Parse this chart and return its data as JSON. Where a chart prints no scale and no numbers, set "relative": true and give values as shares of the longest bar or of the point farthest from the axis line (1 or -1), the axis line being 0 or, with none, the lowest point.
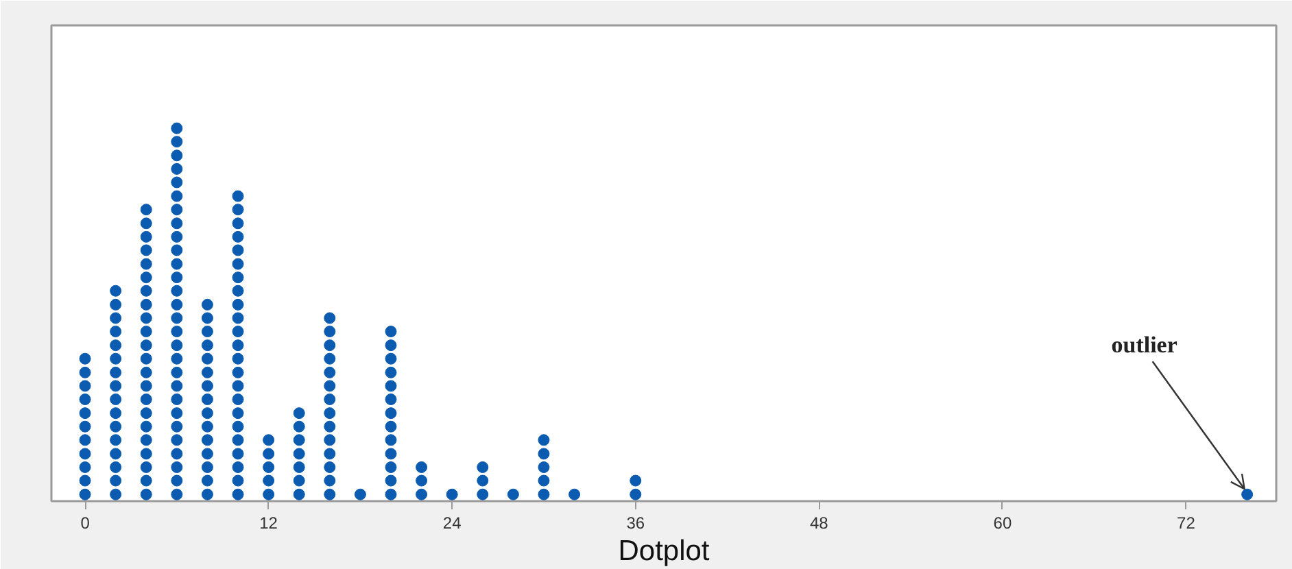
{
  "chart_data": {
    "type": "scatter",
    "relative": true,
    "marker": "circle",
    "color": "#0b5cb0",
    "xlabel": "Dotplot",
    "xlim": [
      -2.2,
      77.9
    ],
    "xticks": [
      0,
      12,
      24,
      36,
      48,
      60,
      72
    ],
    "x": [
      0,
      0,
      0,
      0,
      0,
      0,
      0,
      0,
      0,
      0,
      0,
      2,
      2,
      2,
      2,
      2,
      2,
      2,
      2,
      2,
      2,
      2,
      2,
      2,
      2,
      2,
      2,
      4,
      4,
      4,
      4,
      4,
      4,
      4,
      4,
      4,
      4,
      4,
      4,
      4,
      4,
      4,
      4,
      4,
      4,
      4,
      4,
      4,
      4,
      6,
      6,
      6,
      6,
      6,
      6,
      6,
      6,
      6,
      6,
      6,
      6,
      6,
      6,
      6,
      6,
      6,
      6,
      6,
      6,
      6,
      6,
      6,
      6,
      6,
      6,
      6,
      6,
      8,
      8,
      8,
      8,
      8,
      8,
      8,
      8,
      8,
      8,
      8,
      8,
      8,
      8,
      8,
      10,
      10,
      10,
      10,
      10,
      10,
      10,
      10,
      10,
      10,
      10,
      10,
      10,
      10,
      10,
      10,
      10,
      10,
      10,
      10,
      10,
      10,
      10,
      12,
      12,
      12,
      12,
      12,
      14,
      14,
      14,
      14,
      14,
      14,
      14,
      16,
      16,
      16,
      16,
      16,
      16,
      16,
      16,
      16,
      16,
      16,
      16,
      16,
      16,
      18,
      20,
      20,
      20,
      20,
      20,
      20,
      20,
      20,
      20,
      20,
      20,
      20,
      20,
      22,
      22,
      22,
      24,
      26,
      26,
      26,
      28,
      30,
      30,
      30,
      30,
      30,
      32,
      36,
      36,
      76
    ],
    "values": [
      0.018,
      0.055,
      0.091,
      0.127,
      0.164,
      0.2,
      0.236,
      0.273,
      0.309,
      0.345,
      0.382,
      0.018,
      0.055,
      0.091,
      0.127,
      0.164,
      0.2,
      0.236,
      0.273,
      0.309,
      0.345,
      0.382,
      0.418,
      0.455,
      0.491,
      0.527,
      0.564,
      0.018,
      0.055,
      0.091,
      0.127,
      0.164,
      0.2,
      0.236,
      0.273,
      0.309,
      0.345,
      0.382,
      0.418,
      0.455,
      0.491,
      0.527,
      0.564,
      0.6,
      0.636,
      0.673,
      0.709,
      0.745,
      0.782,
      0.018,
      0.055,
      0.091,
      0.127,
      0.164,
      0.2,
      0.236,
      0.273,
      0.309,
      0.345,
      0.382,
      0.418,
      0.455,
      0.491,
      0.527,
      0.564,
      0.6,
      0.636,
      0.673,
      0.709,
      0.745,
      0.782,
      0.818,
      0.855,
      0.891,
      0.927,
      0.964,
      1,
      0.018,
      0.055,
      0.091,
      0.127,
      0.164,
      0.2,
      0.236,
      0.273,
      0.309,
      0.345,
      0.382,
      0.418,
      0.455,
      0.491,
      0.527,
      0.018,
      0.055,
      0.091,
      0.127,
      0.164,
      0.2,
      0.236,
      0.273,
      0.309,
      0.345,
      0.382,
      0.418,
      0.455,
      0.491,
      0.527,
      0.564,
      0.6,
      0.636,
      0.673,
      0.709,
      0.745,
      0.782,
      0.818,
      0.018,
      0.055,
      0.091,
      0.127,
      0.164,
      0.018,
      0.055,
      0.091,
      0.127,
      0.164,
      0.2,
      0.236,
      0.018,
      0.055,
      0.091,
      0.127,
      0.164,
      0.2,
      0.236,
      0.273,
      0.309,
      0.345,
      0.382,
      0.418,
      0.455,
      0.491,
      0.018,
      0.018,
      0.055,
      0.091,
      0.127,
      0.164,
      0.2,
      0.236,
      0.273,
      0.309,
      0.345,
      0.382,
      0.418,
      0.455,
      0.018,
      0.055,
      0.091,
      0.018,
      0.018,
      0.055,
      0.091,
      0.018,
      0.018,
      0.055,
      0.091,
      0.127,
      0.164,
      0.018,
      0.018,
      0.055,
      0.018
    ],
    "annotations": [
      {
        "text": "outlier",
        "x": 76,
        "y": 0.018
      }
    ]
  }
}
